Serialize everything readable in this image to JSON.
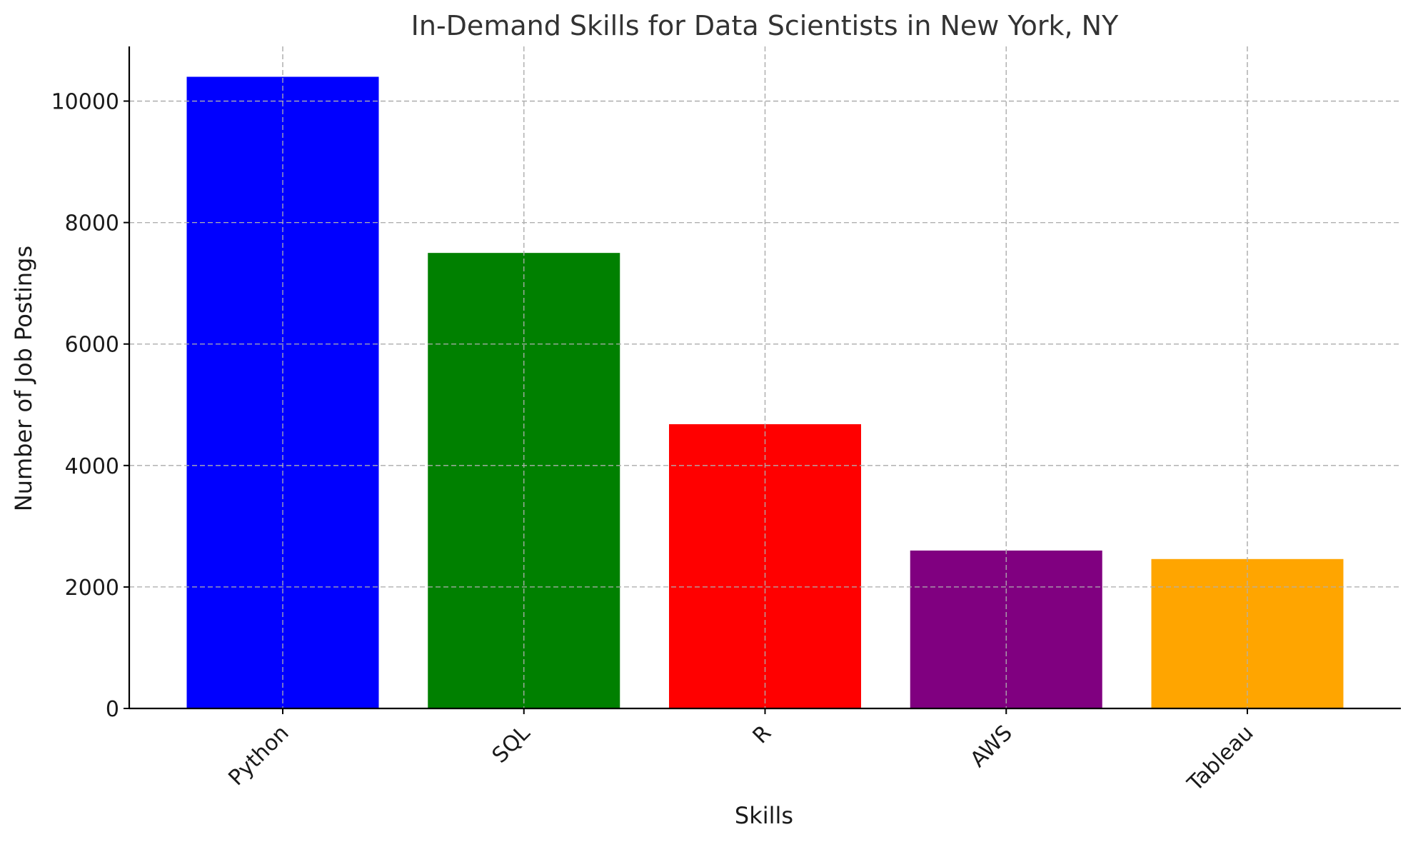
{
  "chart_data": {
    "type": "bar",
    "title": "In-Demand Skills for Data Scientists in New York, NY",
    "xlabel": "Skills",
    "ylabel": "Number of Job Postings",
    "categories": [
      "Python",
      "SQL",
      "R",
      "AWS",
      "Tableau"
    ],
    "values": [
      10400,
      7500,
      4680,
      2600,
      2460
    ],
    "colors": [
      "#0000ff",
      "#008000",
      "#ff0000",
      "#800080",
      "#ffa500"
    ],
    "ylim": [
      0,
      10900
    ],
    "yticks": [
      0,
      2000,
      4000,
      6000,
      8000,
      10000
    ],
    "ytick_labels": [
      "0",
      "2000",
      "4000",
      "6000",
      "8000",
      "10000"
    ],
    "grid": true,
    "xtick_rotation": -45
  }
}
